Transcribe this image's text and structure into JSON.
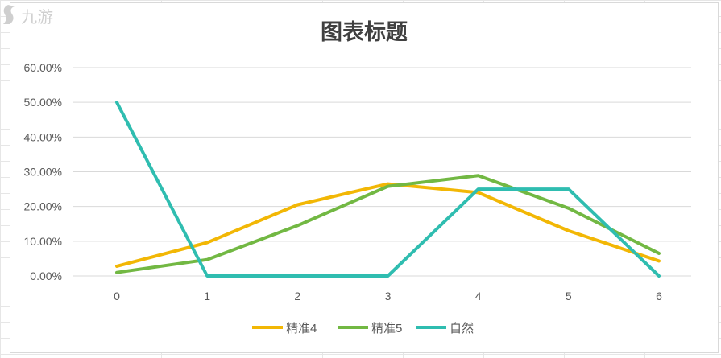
{
  "chart_data": {
    "type": "line",
    "title": "图表标题",
    "x": [
      0,
      1,
      2,
      3,
      4,
      5,
      6
    ],
    "x_tick_labels": [
      "0",
      "1",
      "2",
      "3",
      "4",
      "5",
      "6"
    ],
    "y_tick_labels": [
      "0.00%",
      "10.00%",
      "20.00%",
      "30.00%",
      "40.00%",
      "50.00%",
      "60.00%"
    ],
    "ylim": [
      0,
      0.6
    ],
    "y_step": 0.1,
    "grid": true,
    "legend_position": "bottom",
    "series": [
      {
        "name": "精准4",
        "color": "#f2b705",
        "values": [
          0.028,
          0.096,
          0.205,
          0.265,
          0.24,
          0.13,
          0.043
        ]
      },
      {
        "name": "精准5",
        "color": "#72b843",
        "values": [
          0.01,
          0.047,
          0.145,
          0.258,
          0.289,
          0.195,
          0.065
        ]
      },
      {
        "name": "自然",
        "color": "#2fbdb0",
        "values": [
          0.5,
          0.0,
          0.0,
          0.0,
          0.25,
          0.25,
          0.0
        ]
      }
    ]
  },
  "colors": {
    "gridline": "#d9d9d9",
    "axis_text": "#595959",
    "title_text": "#404040"
  }
}
